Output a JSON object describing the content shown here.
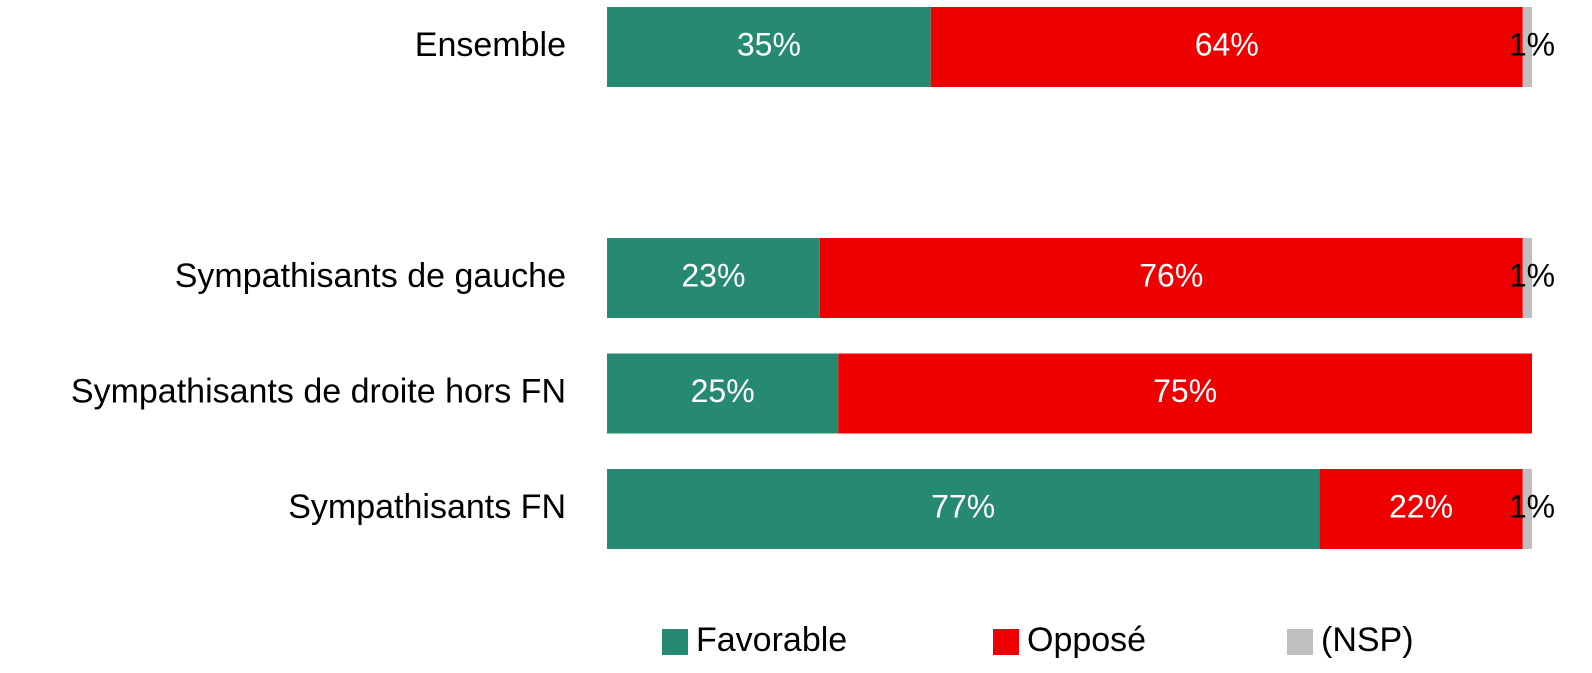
{
  "chart_data": {
    "type": "stacked-barh",
    "categories": [
      "Ensemble",
      null,
      "Sympathisants de gauche",
      "Sympathisants de droite hors FN",
      "Sympathisants FN"
    ],
    "series": [
      {
        "name": "Favorable",
        "color": "#268a72",
        "values": [
          35,
          null,
          23,
          25,
          77
        ],
        "value_labels": [
          "35%",
          null,
          "23%",
          "25%",
          "77%"
        ]
      },
      {
        "name": "Opposé",
        "color": "#ee0000",
        "values": [
          64,
          null,
          76,
          75,
          22
        ],
        "value_labels": [
          "64%",
          null,
          "76%",
          "75%",
          "22%"
        ]
      },
      {
        "name": "(NSP)",
        "color": "#bfbfbf",
        "values": [
          1,
          null,
          1,
          null,
          1
        ],
        "value_labels": [
          "1%",
          null,
          "1%",
          null,
          "1%"
        ]
      }
    ],
    "xlim": [
      0,
      100
    ],
    "legend": "bottom"
  }
}
